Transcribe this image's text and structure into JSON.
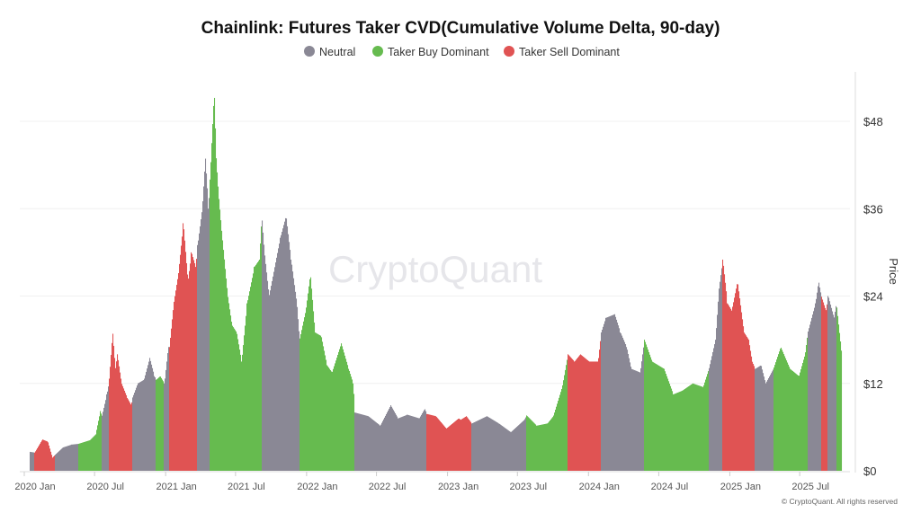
{
  "chart_data": {
    "type": "bar",
    "title": "Chainlink: Futures Taker CVD(Cumulative Volume Delta, 90-day)",
    "ylabel": "Price",
    "y_axis_side": "right",
    "ylim": [
      0,
      52
    ],
    "yticks": [
      0,
      12,
      24,
      36,
      48
    ],
    "ytick_labels": [
      "$0",
      "$12",
      "$24",
      "$36",
      "$48"
    ],
    "xtick_labels": [
      "2020 Jan",
      "2020 Jul",
      "2021 Jan",
      "2021 Jul",
      "2022 Jan",
      "2022 Jul",
      "2023 Jan",
      "2023 Jul",
      "2024 Jan",
      "2024 Jul",
      "2025 Jan",
      "2025 Jul"
    ],
    "xtick_dates": [
      "2020-01-01",
      "2020-07-01",
      "2021-01-01",
      "2021-07-01",
      "2022-01-01",
      "2022-07-01",
      "2023-01-01",
      "2023-07-01",
      "2024-01-01",
      "2024-07-01",
      "2025-01-01",
      "2025-07-01"
    ],
    "grid": true,
    "legend_placement": "top-center",
    "legend": [
      {
        "key": "N",
        "label": "Neutral",
        "color": "#8a8895"
      },
      {
        "key": "G",
        "label": "Taker Buy Dominant",
        "color": "#66bb4f"
      },
      {
        "key": "R",
        "label": "Taker Sell Dominant",
        "color": "#e05353"
      }
    ],
    "points": [
      [
        "2020-01-15",
        2.6,
        "N"
      ],
      [
        "2020-01-27",
        2.5,
        "R"
      ],
      [
        "2020-02-16",
        4.3,
        "R"
      ],
      [
        "2020-03-01",
        4.0,
        "R"
      ],
      [
        "2020-03-13",
        1.8,
        "R"
      ],
      [
        "2020-03-20",
        2.2,
        "N"
      ],
      [
        "2020-04-09",
        3.2,
        "N"
      ],
      [
        "2020-05-02",
        3.6,
        "N"
      ],
      [
        "2020-05-19",
        3.7,
        "G"
      ],
      [
        "2020-06-18",
        4.2,
        "G"
      ],
      [
        "2020-07-03",
        5.0,
        "G"
      ],
      [
        "2020-07-15",
        8.2,
        "G"
      ],
      [
        "2020-07-19",
        7.5,
        "N"
      ],
      [
        "2020-08-01",
        10.5,
        "N"
      ],
      [
        "2020-08-06",
        12,
        "R"
      ],
      [
        "2020-08-16",
        19,
        "R"
      ],
      [
        "2020-08-23",
        14,
        "R"
      ],
      [
        "2020-08-28",
        16,
        "R"
      ],
      [
        "2020-09-08",
        12,
        "R"
      ],
      [
        "2020-09-23",
        10,
        "R"
      ],
      [
        "2020-10-03",
        9,
        "R"
      ],
      [
        "2020-10-06",
        10,
        "N"
      ],
      [
        "2020-10-20",
        12,
        "N"
      ],
      [
        "2020-11-05",
        12.5,
        "N"
      ],
      [
        "2020-11-20",
        15.5,
        "N"
      ],
      [
        "2020-12-02",
        13,
        "N"
      ],
      [
        "2020-12-07",
        12.5,
        "G"
      ],
      [
        "2020-12-17",
        13,
        "G"
      ],
      [
        "2020-12-28",
        12,
        "N"
      ],
      [
        "2021-01-07",
        17,
        "N"
      ],
      [
        "2021-01-10",
        17,
        "R"
      ],
      [
        "2021-01-21",
        23,
        "R"
      ],
      [
        "2021-02-02",
        27,
        "R"
      ],
      [
        "2021-02-15",
        34,
        "R"
      ],
      [
        "2021-02-27",
        26,
        "R"
      ],
      [
        "2021-03-08",
        30,
        "R"
      ],
      [
        "2021-03-19",
        28,
        "R"
      ],
      [
        "2021-03-24",
        31,
        "N"
      ],
      [
        "2021-04-05",
        36,
        "N"
      ],
      [
        "2021-04-13",
        43,
        "N"
      ],
      [
        "2021-04-21",
        36,
        "N"
      ],
      [
        "2021-04-25",
        40,
        "G"
      ],
      [
        "2021-05-03",
        49,
        "G"
      ],
      [
        "2021-05-06",
        52,
        "G"
      ],
      [
        "2021-05-11",
        43,
        "G"
      ],
      [
        "2021-05-17",
        38,
        "G"
      ],
      [
        "2021-05-25",
        33,
        "G"
      ],
      [
        "2021-06-10",
        24,
        "G"
      ],
      [
        "2021-06-21",
        20,
        "G"
      ],
      [
        "2021-07-03",
        19,
        "G"
      ],
      [
        "2021-07-16",
        15,
        "G"
      ],
      [
        "2021-07-30",
        23,
        "G"
      ],
      [
        "2021-08-18",
        28,
        "G"
      ],
      [
        "2021-08-31",
        29,
        "G"
      ],
      [
        "2021-09-06",
        35,
        "N"
      ],
      [
        "2021-09-13",
        30,
        "N"
      ],
      [
        "2021-09-25",
        24,
        "N"
      ],
      [
        "2021-10-06",
        27,
        "N"
      ],
      [
        "2021-10-24",
        32,
        "N"
      ],
      [
        "2021-11-08",
        35,
        "N"
      ],
      [
        "2021-11-21",
        29,
        "N"
      ],
      [
        "2021-12-06",
        23,
        "N"
      ],
      [
        "2021-12-13",
        18,
        "G"
      ],
      [
        "2021-12-29",
        22,
        "G"
      ],
      [
        "2022-01-10",
        27,
        "G"
      ],
      [
        "2022-01-22",
        19,
        "G"
      ],
      [
        "2022-02-07",
        18.5,
        "G"
      ],
      [
        "2022-02-22",
        14.5,
        "G"
      ],
      [
        "2022-03-07",
        13.5,
        "G"
      ],
      [
        "2022-03-31",
        17.5,
        "G"
      ],
      [
        "2022-04-19",
        14,
        "G"
      ],
      [
        "2022-05-01",
        12,
        "G"
      ],
      [
        "2022-05-05",
        8,
        "N"
      ],
      [
        "2022-06-09",
        7.5,
        "N"
      ],
      [
        "2022-07-10",
        6.2,
        "N"
      ],
      [
        "2022-08-06",
        9,
        "N"
      ],
      [
        "2022-08-25",
        7.2,
        "N"
      ],
      [
        "2022-09-18",
        7.7,
        "N"
      ],
      [
        "2022-10-19",
        7.2,
        "N"
      ],
      [
        "2022-11-02",
        8.5,
        "N"
      ],
      [
        "2022-11-08",
        7.8,
        "R"
      ],
      [
        "2022-12-01",
        7.5,
        "R"
      ],
      [
        "2022-12-28",
        5.8,
        "R"
      ],
      [
        "2023-01-29",
        7.2,
        "R"
      ],
      [
        "2023-02-03",
        7,
        "R"
      ],
      [
        "2023-02-18",
        7.5,
        "R"
      ],
      [
        "2023-03-04",
        6.5,
        "N"
      ],
      [
        "2023-04-12",
        7.5,
        "N"
      ],
      [
        "2023-05-13",
        6.5,
        "N"
      ],
      [
        "2023-06-13",
        5.3,
        "N"
      ],
      [
        "2023-07-18",
        7,
        "N"
      ],
      [
        "2023-07-24",
        7.6,
        "G"
      ],
      [
        "2023-08-19",
        6.2,
        "G"
      ],
      [
        "2023-09-16",
        6.5,
        "G"
      ],
      [
        "2023-10-01",
        7.5,
        "G"
      ],
      [
        "2023-10-24",
        11.5,
        "G"
      ],
      [
        "2023-11-08",
        16,
        "R"
      ],
      [
        "2023-11-25",
        15,
        "R"
      ],
      [
        "2023-12-10",
        16,
        "R"
      ],
      [
        "2024-01-02",
        15,
        "R"
      ],
      [
        "2024-01-25",
        15,
        "R"
      ],
      [
        "2024-02-02",
        19,
        "N"
      ],
      [
        "2024-02-14",
        21,
        "N"
      ],
      [
        "2024-03-08",
        21.5,
        "N"
      ],
      [
        "2024-03-23",
        19,
        "N"
      ],
      [
        "2024-04-08",
        17,
        "N"
      ],
      [
        "2024-04-20",
        14,
        "N"
      ],
      [
        "2024-05-13",
        13.5,
        "N"
      ],
      [
        "2024-05-24",
        18,
        "G"
      ],
      [
        "2024-06-13",
        15,
        "G"
      ],
      [
        "2024-07-14",
        14,
        "G"
      ],
      [
        "2024-08-07",
        10.5,
        "G"
      ],
      [
        "2024-08-30",
        11,
        "G"
      ],
      [
        "2024-09-26",
        12,
        "G"
      ],
      [
        "2024-10-23",
        11.5,
        "G"
      ],
      [
        "2024-11-07",
        14,
        "N"
      ],
      [
        "2024-11-24",
        18,
        "N"
      ],
      [
        "2024-12-03",
        25,
        "N"
      ],
      [
        "2024-12-13",
        29,
        "R"
      ],
      [
        "2024-12-25",
        23,
        "R"
      ],
      [
        "2025-01-05",
        22,
        "R"
      ],
      [
        "2025-01-20",
        26,
        "R"
      ],
      [
        "2025-02-06",
        19,
        "R"
      ],
      [
        "2025-02-18",
        18,
        "R"
      ],
      [
        "2025-02-27",
        15,
        "R"
      ],
      [
        "2025-03-07",
        14,
        "N"
      ],
      [
        "2025-03-22",
        14.5,
        "N"
      ],
      [
        "2025-04-03",
        12,
        "N"
      ],
      [
        "2025-04-23",
        14,
        "G"
      ],
      [
        "2025-05-12",
        17,
        "G"
      ],
      [
        "2025-06-05",
        14,
        "G"
      ],
      [
        "2025-06-28",
        13,
        "G"
      ],
      [
        "2025-07-14",
        16,
        "G"
      ],
      [
        "2025-07-21",
        19,
        "N"
      ],
      [
        "2025-08-10",
        23,
        "N"
      ],
      [
        "2025-08-18",
        26,
        "N"
      ],
      [
        "2025-08-25",
        24,
        "R"
      ],
      [
        "2025-09-06",
        22,
        "R"
      ],
      [
        "2025-09-12",
        24,
        "N"
      ],
      [
        "2025-09-27",
        21,
        "N"
      ],
      [
        "2025-10-03",
        23,
        "G"
      ],
      [
        "2025-10-16",
        16.5,
        "G"
      ]
    ]
  },
  "watermark": "CryptoQuant",
  "copyright": "© CryptoQuant. All rights reserved"
}
